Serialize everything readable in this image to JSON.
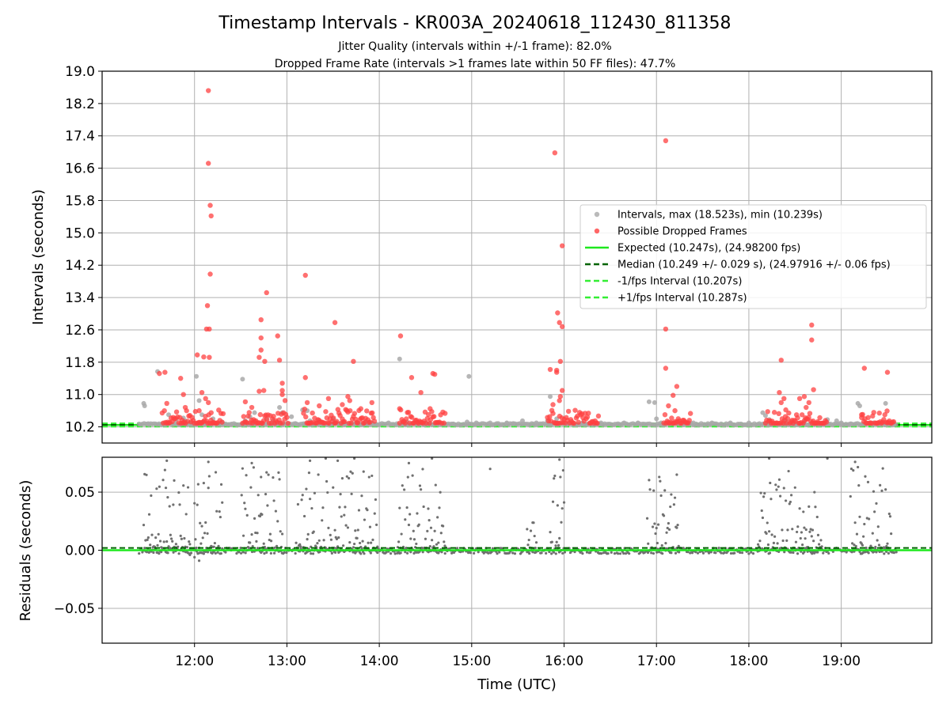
{
  "chart_data": [
    {
      "type": "scatter",
      "title": "Timestamp Intervals - KR003A_20240618_112430_811358",
      "subtitle_lines": [
        "Jitter Quality (intervals within +/-1 frame): 82.0%",
        "Dropped Frame Rate (intervals >1 frames late within 50 FF files): 47.7%"
      ],
      "xlabel": "",
      "ylabel": "Intervals (seconds)",
      "x_range_hours": [
        11.0,
        19.98
      ],
      "xticks": [
        {
          "t": 12,
          "label": "12:00"
        },
        {
          "t": 13,
          "label": "13:00"
        },
        {
          "t": 14,
          "label": "14:00"
        },
        {
          "t": 15,
          "label": "15:00"
        },
        {
          "t": 16,
          "label": "16:00"
        },
        {
          "t": 17,
          "label": "17:00"
        },
        {
          "t": 18,
          "label": "18:00"
        },
        {
          "t": 19,
          "label": "19:00"
        }
      ],
      "ylim": [
        9.8,
        19.0
      ],
      "yticks": [
        "10.2",
        "11.0",
        "11.8",
        "12.6",
        "13.4",
        "14.2",
        "15.0",
        "15.8",
        "16.6",
        "17.4",
        "18.2",
        "19.0"
      ],
      "grid": true,
      "legend_position": "right",
      "legend": [
        {
          "label": "Intervals, max (18.523s), min (10.239s)",
          "kind": "dot",
          "color": "#a9a9a9"
        },
        {
          "label": "Possible Dropped Frames",
          "kind": "dot",
          "color": "#ff4040"
        },
        {
          "label": "Expected (10.247s), (24.98200 fps)",
          "kind": "line",
          "color": "#1ee81e"
        },
        {
          "label": "Median (10.249 +/- 0.029 s), (24.97916 +/- 0.06 fps)",
          "kind": "dash",
          "color": "#006400"
        },
        {
          "label": "-1/fps Interval (10.207s)",
          "kind": "dash",
          "color": "#33ee33"
        },
        {
          "label": "+1/fps Interval (10.287s)",
          "kind": "dash",
          "color": "#33ee33"
        }
      ],
      "reference_lines": {
        "expected": 10.247,
        "median": 10.249,
        "minus_one_frame": 10.207,
        "plus_one_frame": 10.287
      },
      "series": [
        {
          "name": "Intervals",
          "color": "#a9a9a9",
          "points": [
            [
              11.45,
              10.78
            ],
            [
              11.46,
              10.72
            ],
            [
              11.6,
              11.57
            ],
            [
              11.72,
              10.5
            ],
            [
              11.8,
              10.38
            ],
            [
              11.88,
              10.42
            ],
            [
              11.9,
              10.35
            ],
            [
              11.95,
              10.3
            ],
            [
              12.02,
              11.45
            ],
            [
              12.05,
              10.85
            ],
            [
              12.08,
              10.5
            ],
            [
              12.2,
              10.4
            ],
            [
              12.3,
              10.32
            ],
            [
              12.52,
              11.38
            ],
            [
              12.55,
              10.35
            ],
            [
              12.6,
              10.45
            ],
            [
              12.65,
              10.55
            ],
            [
              12.78,
              10.4
            ],
            [
              12.85,
              10.35
            ],
            [
              12.92,
              10.68
            ],
            [
              12.95,
              10.55
            ],
            [
              13.05,
              10.45
            ],
            [
              13.17,
              10.62
            ],
            [
              13.22,
              10.6
            ],
            [
              13.25,
              10.35
            ],
            [
              13.35,
              10.32
            ],
            [
              13.5,
              10.4
            ],
            [
              13.62,
              10.3
            ],
            [
              13.75,
              10.3
            ],
            [
              13.85,
              10.33
            ],
            [
              13.92,
              10.3
            ],
            [
              14.1,
              10.3
            ],
            [
              14.22,
              11.88
            ],
            [
              14.3,
              10.32
            ],
            [
              14.5,
              10.3
            ],
            [
              14.65,
              10.3
            ],
            [
              14.95,
              10.32
            ],
            [
              14.97,
              11.45
            ],
            [
              15.05,
              10.3
            ],
            [
              15.2,
              10.3
            ],
            [
              15.38,
              10.3
            ],
            [
              15.55,
              10.35
            ],
            [
              15.7,
              10.3
            ],
            [
              15.82,
              10.35
            ],
            [
              15.85,
              10.95
            ],
            [
              15.92,
              10.4
            ],
            [
              16.0,
              10.3
            ],
            [
              16.2,
              10.3
            ],
            [
              16.4,
              10.3
            ],
            [
              16.65,
              10.3
            ],
            [
              16.8,
              10.3
            ],
            [
              16.92,
              10.82
            ],
            [
              16.98,
              10.8
            ],
            [
              17.0,
              10.4
            ],
            [
              17.05,
              10.3
            ],
            [
              17.2,
              10.3
            ],
            [
              17.4,
              10.3
            ],
            [
              17.6,
              10.3
            ],
            [
              17.8,
              10.3
            ],
            [
              18.0,
              10.3
            ],
            [
              18.15,
              10.55
            ],
            [
              18.18,
              10.48
            ],
            [
              18.22,
              10.38
            ],
            [
              18.4,
              10.35
            ],
            [
              18.6,
              10.32
            ],
            [
              18.75,
              10.3
            ],
            [
              18.85,
              10.38
            ],
            [
              18.95,
              10.35
            ],
            [
              19.0,
              10.3
            ],
            [
              19.18,
              10.78
            ],
            [
              19.2,
              10.72
            ],
            [
              19.35,
              10.3
            ],
            [
              19.48,
              10.78
            ],
            [
              19.5,
              10.3
            ],
            [
              19.55,
              10.3
            ],
            [
              11.5,
              10.28
            ],
            [
              11.65,
              10.28
            ],
            [
              12.4,
              10.27
            ],
            [
              13.1,
              10.27
            ],
            [
              14.8,
              10.27
            ],
            [
              15.45,
              10.27
            ],
            [
              16.3,
              10.27
            ],
            [
              17.3,
              10.27
            ],
            [
              18.5,
              10.27
            ],
            [
              19.1,
              10.27
            ]
          ]
        },
        {
          "name": "Possible Dropped Frames",
          "color": "#ff4040",
          "points": [
            [
              12.15,
              18.52
            ],
            [
              12.15,
              16.72
            ],
            [
              12.17,
              15.68
            ],
            [
              12.18,
              15.42
            ],
            [
              12.17,
              13.98
            ],
            [
              12.14,
              13.2
            ],
            [
              12.13,
              12.62
            ],
            [
              12.16,
              12.62
            ],
            [
              12.03,
              11.98
            ],
            [
              12.1,
              11.93
            ],
            [
              12.16,
              11.92
            ],
            [
              11.62,
              11.52
            ],
            [
              11.68,
              11.55
            ],
            [
              11.85,
              11.4
            ],
            [
              11.88,
              11.0
            ],
            [
              12.08,
              11.05
            ],
            [
              12.12,
              10.9
            ],
            [
              12.15,
              10.8
            ],
            [
              11.7,
              10.78
            ],
            [
              11.9,
              10.68
            ],
            [
              12.05,
              10.6
            ],
            [
              12.18,
              10.55
            ],
            [
              12.78,
              13.52
            ],
            [
              12.72,
              12.85
            ],
            [
              12.72,
              12.4
            ],
            [
              12.72,
              12.1
            ],
            [
              12.76,
              11.82
            ],
            [
              12.7,
              11.92
            ],
            [
              12.7,
              11.08
            ],
            [
              12.75,
              11.1
            ],
            [
              12.55,
              10.82
            ],
            [
              12.62,
              10.68
            ],
            [
              12.9,
              12.45
            ],
            [
              12.92,
              11.85
            ],
            [
              12.95,
              11.28
            ],
            [
              12.95,
              11.1
            ],
            [
              12.95,
              11.0
            ],
            [
              12.98,
              10.85
            ],
            [
              13.2,
              13.95
            ],
            [
              13.2,
              11.42
            ],
            [
              13.22,
              10.8
            ],
            [
              13.35,
              10.72
            ],
            [
              13.45,
              10.9
            ],
            [
              13.52,
              12.78
            ],
            [
              13.6,
              10.75
            ],
            [
              13.66,
              10.95
            ],
            [
              13.68,
              10.85
            ],
            [
              13.72,
              11.82
            ],
            [
              13.8,
              10.65
            ],
            [
              13.92,
              10.8
            ],
            [
              14.23,
              12.45
            ],
            [
              14.22,
              10.65
            ],
            [
              14.35,
              11.42
            ],
            [
              14.45,
              11.05
            ],
            [
              14.58,
              11.52
            ],
            [
              14.6,
              11.5
            ],
            [
              14.55,
              10.65
            ],
            [
              15.9,
              16.98
            ],
            [
              15.98,
              14.68
            ],
            [
              15.93,
              13.02
            ],
            [
              15.95,
              12.78
            ],
            [
              15.98,
              12.68
            ],
            [
              15.85,
              11.62
            ],
            [
              15.92,
              11.6
            ],
            [
              15.92,
              11.55
            ],
            [
              15.96,
              11.82
            ],
            [
              15.98,
              11.1
            ],
            [
              15.96,
              10.95
            ],
            [
              15.95,
              10.85
            ],
            [
              15.88,
              10.75
            ],
            [
              17.1,
              17.28
            ],
            [
              17.1,
              12.62
            ],
            [
              17.1,
              11.65
            ],
            [
              17.22,
              11.2
            ],
            [
              17.18,
              10.98
            ],
            [
              17.13,
              10.72
            ],
            [
              17.2,
              10.6
            ],
            [
              18.35,
              11.85
            ],
            [
              18.33,
              11.05
            ],
            [
              18.38,
              10.9
            ],
            [
              18.35,
              10.8
            ],
            [
              18.4,
              10.62
            ],
            [
              18.55,
              10.9
            ],
            [
              18.6,
              10.95
            ],
            [
              18.68,
              12.72
            ],
            [
              18.68,
              12.35
            ],
            [
              18.7,
              11.12
            ],
            [
              18.65,
              10.8
            ],
            [
              18.62,
              10.68
            ],
            [
              19.25,
              11.65
            ],
            [
              19.5,
              11.55
            ],
            [
              19.22,
              10.5
            ],
            [
              19.4,
              10.3
            ],
            [
              19.5,
              10.3
            ]
          ],
          "dense_bands_hours": [
            [
              11.65,
              12.32
            ],
            [
              12.52,
              13.02
            ],
            [
              13.18,
              13.95
            ],
            [
              14.22,
              14.72
            ],
            [
              15.82,
              16.38
            ],
            [
              17.08,
              17.38
            ],
            [
              18.18,
              18.85
            ],
            [
              19.22,
              19.58
            ]
          ]
        }
      ]
    },
    {
      "type": "scatter",
      "xlabel": "Time (UTC)",
      "ylabel": "Residuals (seconds)",
      "ylim": [
        -0.08,
        0.08
      ],
      "yticks": [
        "−0.05",
        "0.00",
        "0.05"
      ],
      "grid": true,
      "reference_lines": {
        "expected": 0.0,
        "median": 0.002
      },
      "series": [
        {
          "name": "Residuals",
          "color": "#707070",
          "active_bands_hours": [
            [
              11.45,
              11.95
            ],
            [
              12.0,
              12.3
            ],
            [
              12.5,
              12.95
            ],
            [
              13.1,
              13.98
            ],
            [
              14.2,
              14.72
            ],
            [
              15.6,
              15.7
            ],
            [
              15.85,
              16.0
            ],
            [
              16.9,
              17.25
            ],
            [
              18.1,
              18.8
            ],
            [
              19.1,
              19.55
            ]
          ],
          "outliers": [
            [
              11.7,
              0.077
            ],
            [
              11.78,
              0.06
            ],
            [
              12.15,
              0.076
            ],
            [
              12.62,
              0.075
            ],
            [
              12.72,
              0.063
            ],
            [
              13.25,
              0.077
            ],
            [
              13.42,
              0.079
            ],
            [
              13.55,
              0.077
            ],
            [
              13.73,
              0.079
            ],
            [
              14.32,
              0.075
            ],
            [
              14.57,
              0.079
            ],
            [
              15.2,
              0.07
            ],
            [
              15.95,
              0.078
            ],
            [
              17.22,
              0.065
            ],
            [
              18.22,
              0.079
            ],
            [
              18.85,
              0.079
            ],
            [
              19.15,
              0.076
            ]
          ]
        }
      ]
    }
  ]
}
